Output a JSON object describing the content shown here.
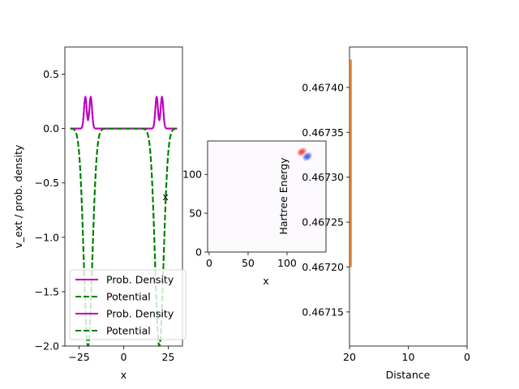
{
  "chart_data": [
    {
      "type": "line",
      "xlabel": "x",
      "ylabel": "v_ext / prob. density",
      "xlim": [
        -33,
        33
      ],
      "ylim": [
        -2.0,
        0.75
      ],
      "xticks": [
        -25,
        0,
        25
      ],
      "yticks": [
        -2.0,
        -1.5,
        -1.0,
        -0.5,
        0.0,
        0.5
      ],
      "ytick_labels": [
        "−2.0",
        "−1.5",
        "−1.0",
        "−0.5",
        "0.0",
        "0.5"
      ],
      "xtick_labels": [
        "−25",
        "0",
        "25"
      ],
      "wells": {
        "centers": [
          -20,
          20
        ],
        "depth": -2.0,
        "sigma": 2.4
      },
      "density_peaks": {
        "centers": [
          -21.5,
          -18.5,
          18.5,
          21.5
        ],
        "height": 0.29,
        "sigma": 0.75
      },
      "x_range": [
        -30,
        30
      ],
      "series": [
        {
          "name": "Prob. Density",
          "style": "solid",
          "color": "#bf00bf"
        },
        {
          "name": "Potential",
          "style": "dashed",
          "color": "#008000"
        },
        {
          "name": "Prob. Density",
          "style": "solid",
          "color": "#bf00bf"
        },
        {
          "name": "Potential",
          "style": "dashed",
          "color": "#008000"
        }
      ],
      "annotation": {
        "text": "x",
        "x": 23.5,
        "y": -0.63
      },
      "legend": "lower-left"
    },
    {
      "type": "heatmap",
      "xlabel": "x",
      "xlim": [
        -2,
        150
      ],
      "ylim": [
        0,
        143
      ],
      "xticks": [
        0,
        50,
        100
      ],
      "yticks": [
        0,
        50,
        100
      ],
      "blobs": [
        {
          "x": 119,
          "y": 129,
          "color": "#e8262b"
        },
        {
          "x": 126,
          "y": 123,
          "color": "#2a3ee0"
        }
      ]
    },
    {
      "type": "line",
      "xlabel": "Distance",
      "ylabel": "Hartree Energy",
      "xlim": [
        20,
        0
      ],
      "ylim": [
        0.467112,
        0.467445
      ],
      "xticks": [
        20,
        10,
        0
      ],
      "yticks": [
        0.46715,
        0.4672,
        0.46725,
        0.4673,
        0.46735,
        0.4674
      ],
      "ytick_labels": [
        "0.46715",
        "0.46720",
        "0.46725",
        "0.46730",
        "0.46735",
        "0.46740"
      ],
      "series": [
        {
          "color": "#ff7f0e",
          "x": [
            19.75,
            19.75
          ],
          "y": [
            0.4672,
            0.467431
          ]
        }
      ]
    }
  ]
}
